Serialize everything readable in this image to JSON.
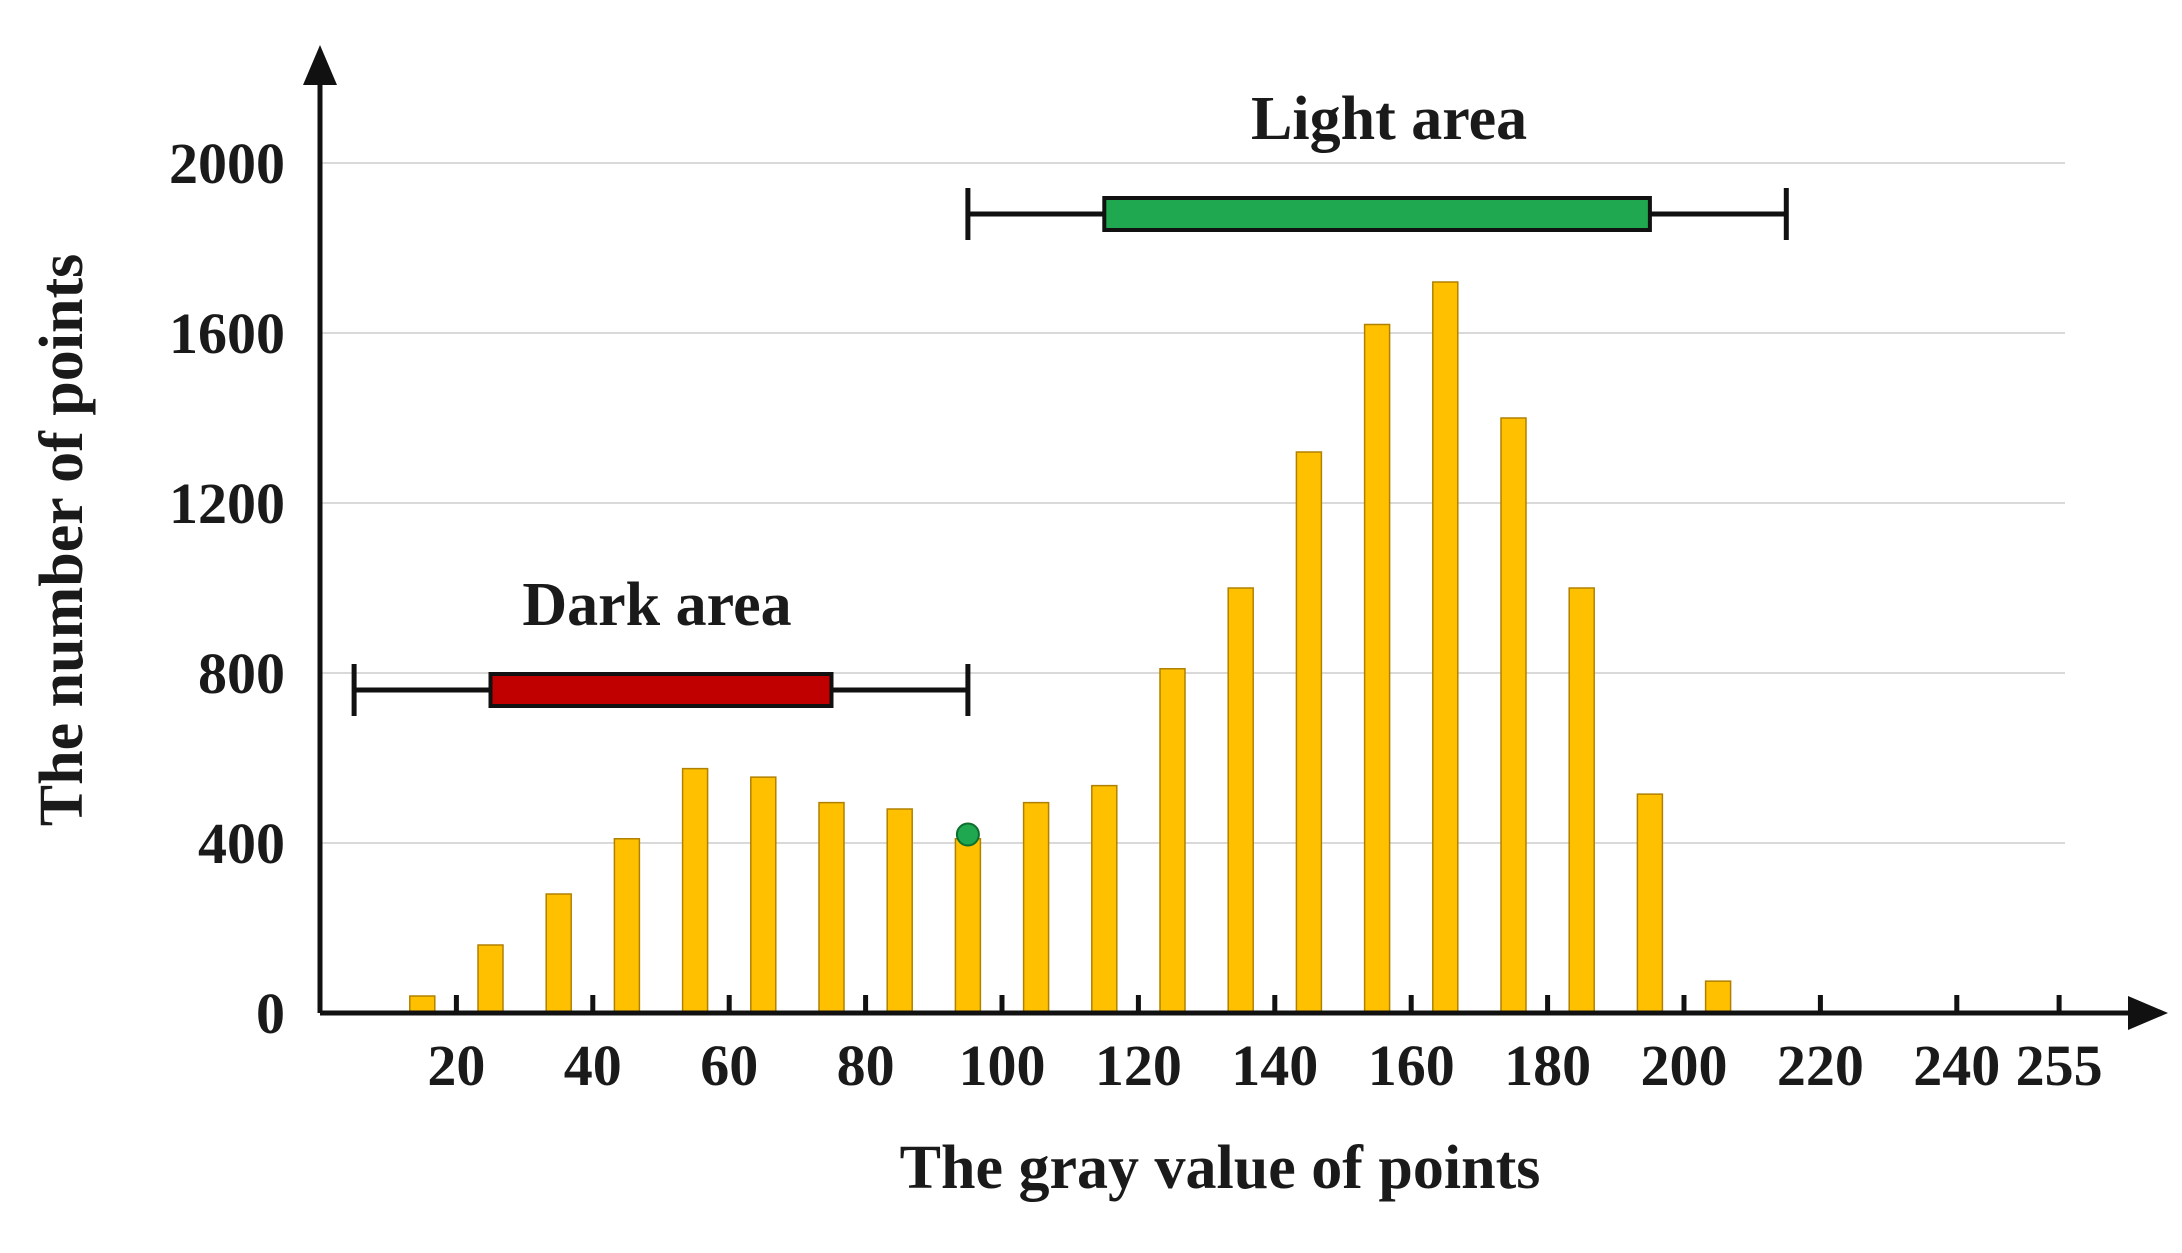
{
  "chart_data": {
    "type": "bar",
    "title": "",
    "xlabel": "The gray value of points",
    "ylabel": "The number of points",
    "xlim": [
      0,
      255
    ],
    "ylim": [
      0,
      2000
    ],
    "x_ticks": [
      20,
      40,
      60,
      80,
      100,
      120,
      140,
      160,
      180,
      200,
      220,
      240,
      255
    ],
    "y_ticks": [
      0,
      400,
      800,
      1200,
      1600,
      2000
    ],
    "grid": "horizontal",
    "series": [
      {
        "x": [
          15,
          25,
          35,
          45,
          55,
          65,
          75,
          85,
          95,
          105,
          115,
          125,
          135,
          145,
          155,
          165,
          175,
          185,
          195,
          205
        ],
        "values": [
          40,
          160,
          280,
          410,
          575,
          555,
          495,
          480,
          410,
          495,
          535,
          810,
          1000,
          1320,
          1620,
          1720,
          1400,
          1000,
          515,
          75
        ]
      }
    ],
    "annotations": [
      {
        "label": "Dark area",
        "whisker": [
          5,
          95
        ],
        "box": [
          25,
          75
        ],
        "y": 760,
        "box_color": "#c00000"
      },
      {
        "label": "Light area",
        "whisker": [
          95,
          215
        ],
        "box": [
          115,
          195
        ],
        "y": 1880,
        "box_color": "#1fa84f"
      }
    ],
    "marker": {
      "x": 95,
      "y": 420,
      "color": "#1fa84f"
    },
    "colors": {
      "bar": "#ffc000",
      "bar_stroke": "#b08000",
      "axis": "#111111",
      "grid": "#d9d9d9"
    }
  }
}
